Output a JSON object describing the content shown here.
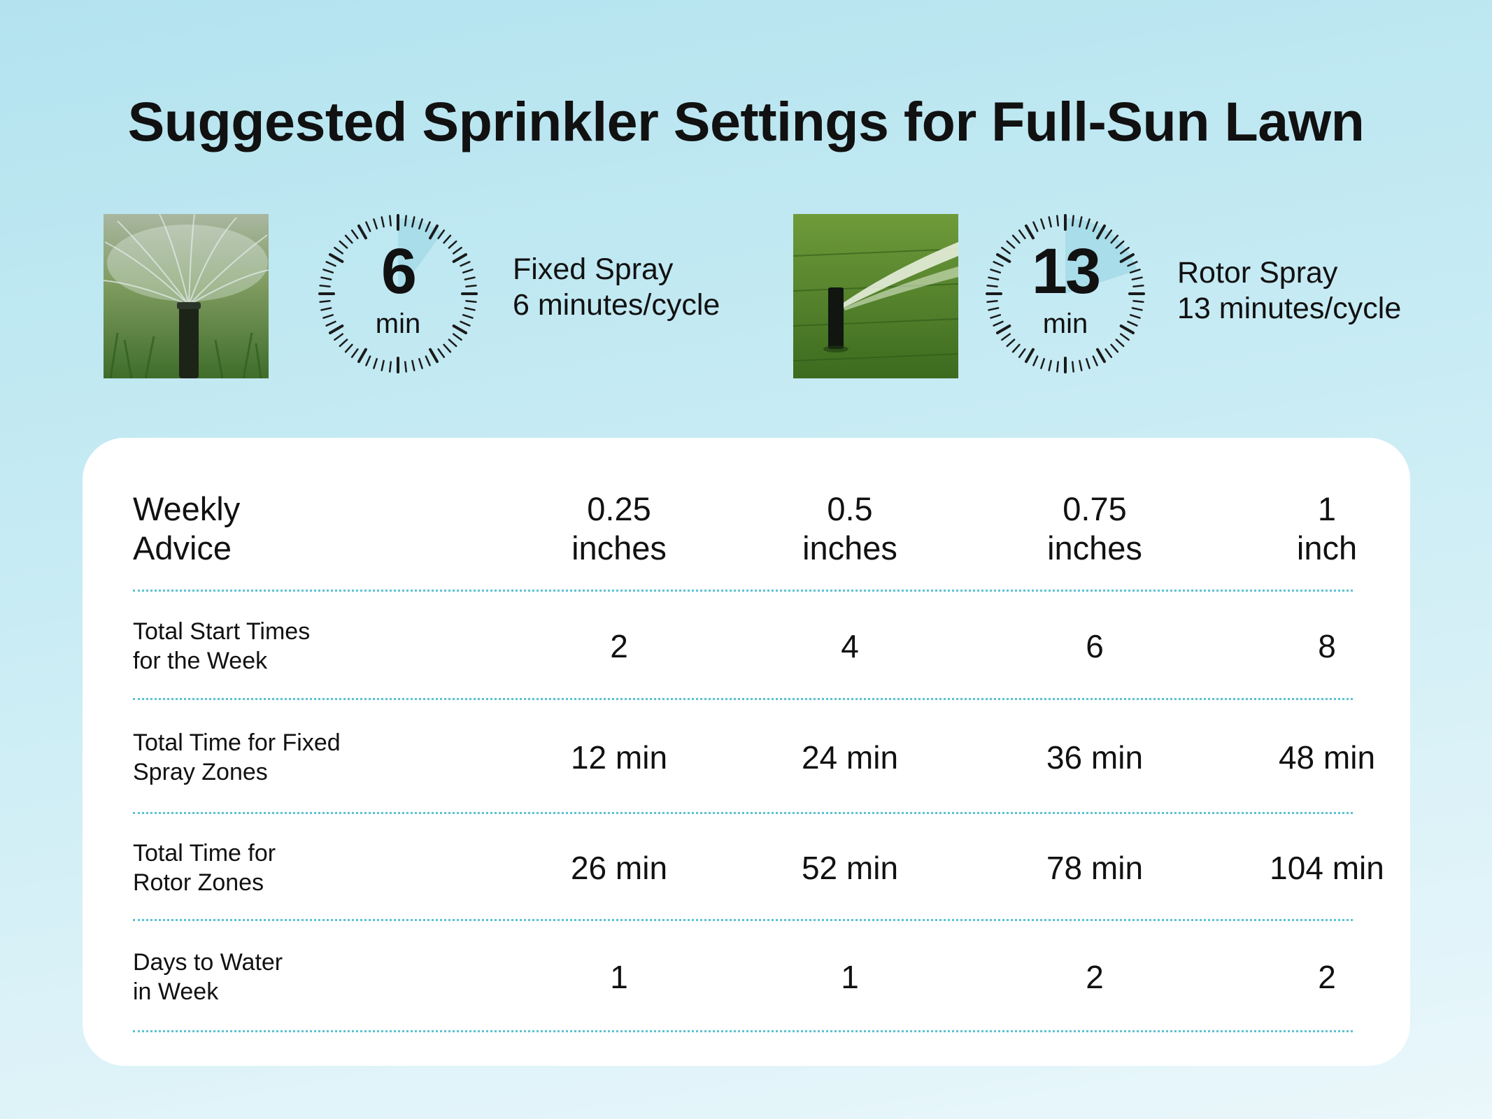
{
  "title": "Suggested Sprinkler Settings for Full-Sun Lawn",
  "fixed_spray": {
    "timer_value": "6",
    "timer_unit": "min",
    "timer_fraction": 0.1,
    "name": "Fixed Spray",
    "rate": "6 minutes/cycle"
  },
  "rotor_spray": {
    "timer_value": "13",
    "timer_unit": "min",
    "timer_fraction": 0.2,
    "name": "Rotor Spray",
    "rate": "13 minutes/cycle"
  },
  "table": {
    "header": {
      "label_line1": "Weekly",
      "label_line2": "Advice",
      "columns": [
        {
          "value": "0.25",
          "unit": "inches"
        },
        {
          "value": "0.5",
          "unit": "inches"
        },
        {
          "value": "0.75",
          "unit": "inches"
        },
        {
          "value": "1",
          "unit": "inch"
        }
      ]
    },
    "rows": [
      {
        "label_line1": "Total Start Times",
        "label_line2": "for the Week",
        "values": [
          "2",
          "4",
          "6",
          "8"
        ]
      },
      {
        "label_line1": "Total Time for Fixed",
        "label_line2": "Spray Zones",
        "values": [
          "12 min",
          "24 min",
          "36 min",
          "48 min"
        ]
      },
      {
        "label_line1": "Total Time for",
        "label_line2": "Rotor Zones",
        "values": [
          "26 min",
          "52 min",
          "78 min",
          "104 min"
        ]
      },
      {
        "label_line1": "Days to Water",
        "label_line2": "in Week",
        "values": [
          "1",
          "1",
          "2",
          "2"
        ]
      }
    ]
  },
  "colors": {
    "accent": "#5cc2cf",
    "timer_fill": "#a8dde9",
    "background_top": "#b3e3ef",
    "background_bottom": "#eaf7fb"
  }
}
